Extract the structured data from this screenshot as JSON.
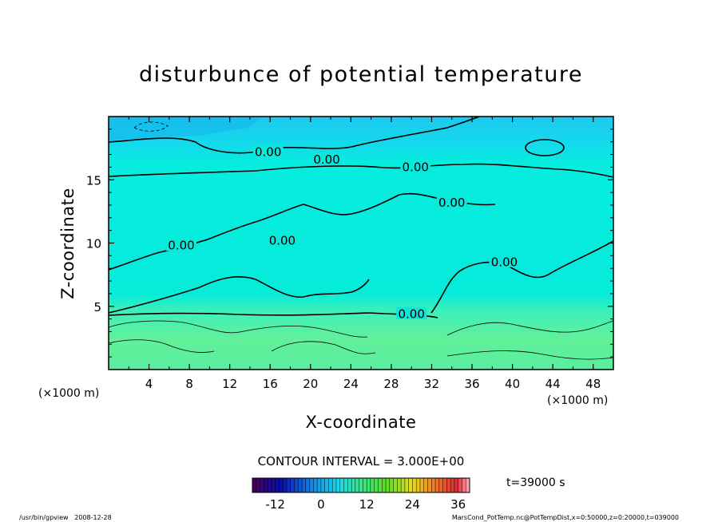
{
  "chart_data": {
    "type": "heatmap",
    "title": "disturbunce of potential temperature",
    "xlabel": "X-coordinate",
    "ylabel": "Z-coordinate",
    "x_unit_left": "(×1000 m)",
    "x_unit_right": "(×1000 m)",
    "xlim": [
      0,
      50
    ],
    "ylim": [
      0,
      20
    ],
    "x_ticks": [
      4,
      8,
      12,
      16,
      20,
      24,
      28,
      32,
      36,
      40,
      44,
      48
    ],
    "x_tick_labels": [
      "4",
      "8",
      "12",
      "16",
      "20",
      "24",
      "28",
      "32",
      "36",
      "40",
      "44",
      "48"
    ],
    "y_ticks": [
      5,
      10,
      15
    ],
    "y_tick_labels": [
      "5",
      "10",
      "15"
    ],
    "contour_interval_text": "CONTOUR INTERVAL = 3.000E+00",
    "contour_labels": [
      {
        "text": "0.00",
        "x": 15.8,
        "z": 17.2
      },
      {
        "text": "0.00",
        "x": 21.6,
        "z": 16.6
      },
      {
        "text": "0.00",
        "x": 30.4,
        "z": 16.0
      },
      {
        "text": "0.00",
        "x": 34.0,
        "z": 13.2
      },
      {
        "text": "0.00",
        "x": 17.2,
        "z": 10.2
      },
      {
        "text": "0.00",
        "x": 7.2,
        "z": 9.8
      },
      {
        "text": "0.00",
        "x": 39.2,
        "z": 8.5
      },
      {
        "text": "0.00",
        "x": 30.0,
        "z": 4.4
      }
    ],
    "colorbar": {
      "min": -18,
      "max": 39,
      "tick_values": [
        -12,
        0,
        12,
        24,
        36
      ],
      "tick_labels": [
        "-12",
        "0",
        "12",
        "24",
        "36"
      ]
    },
    "time_label": "t=39000 s",
    "footer_left": "/usr/bin/gpview   2008-12-28",
    "footer_right": "MarsCond_PotTemp.nc@PotTempDist,x=0:50000,z=0:20000,t=039000"
  }
}
